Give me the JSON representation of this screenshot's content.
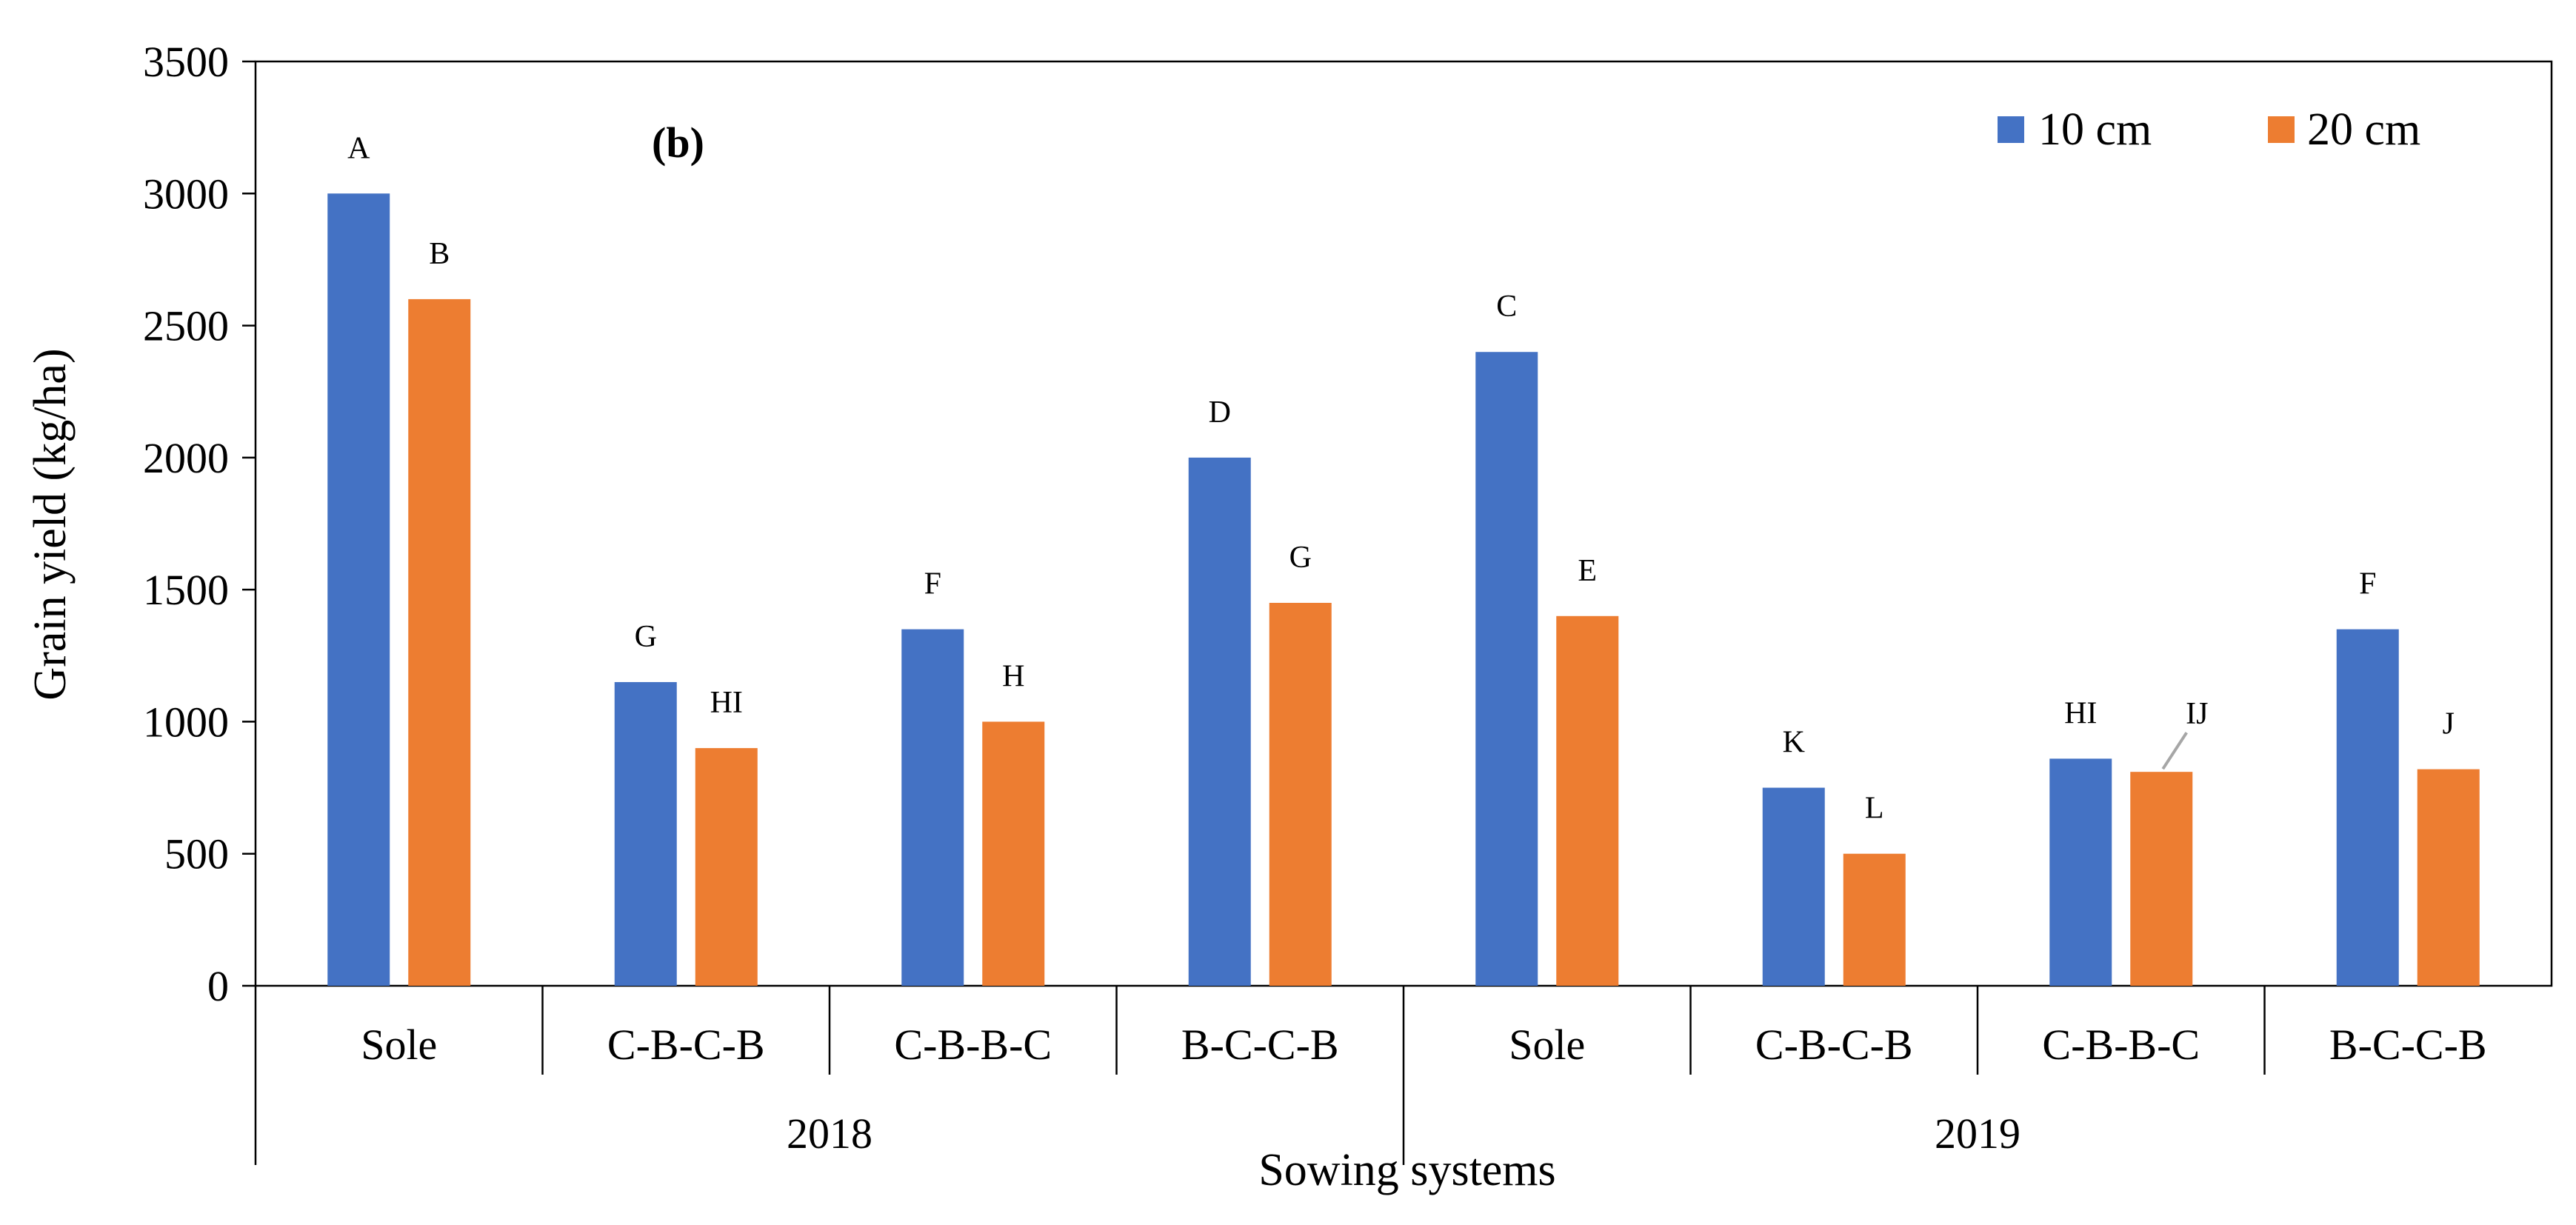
{
  "chart_data": {
    "type": "bar",
    "panel_tag": "(b)",
    "xlabel": "Sowing systems",
    "ylabel": "Grain yield (kg/ha)",
    "ylim": [
      0,
      3500
    ],
    "yticks": [
      0,
      500,
      1000,
      1500,
      2000,
      2500,
      3000,
      3500
    ],
    "legend_position": "top-right",
    "categories": [
      "Sole",
      "C-B-C-B",
      "C-B-B-C",
      "B-C-C-B",
      "Sole",
      "C-B-C-B",
      "C-B-B-C",
      "B-C-C-B"
    ],
    "groups": [
      {
        "label": "2018",
        "categories": [
          0,
          1,
          2,
          3
        ]
      },
      {
        "label": "2019",
        "categories": [
          4,
          5,
          6,
          7
        ]
      }
    ],
    "series": [
      {
        "name": "10 cm",
        "color": "#4472C4",
        "values": [
          3000,
          1150,
          1350,
          2000,
          2400,
          750,
          860,
          1350
        ],
        "labels": [
          "A",
          "G",
          "F",
          "D",
          "C",
          "K",
          "HI",
          "F"
        ]
      },
      {
        "name": "20 cm",
        "color": "#ED7D31",
        "values": [
          2600,
          900,
          1000,
          1450,
          1400,
          500,
          810,
          820
        ],
        "labels": [
          "B",
          "HI",
          "H",
          "G",
          "E",
          "L",
          "IJ",
          "J"
        ]
      }
    ],
    "grid": false
  }
}
